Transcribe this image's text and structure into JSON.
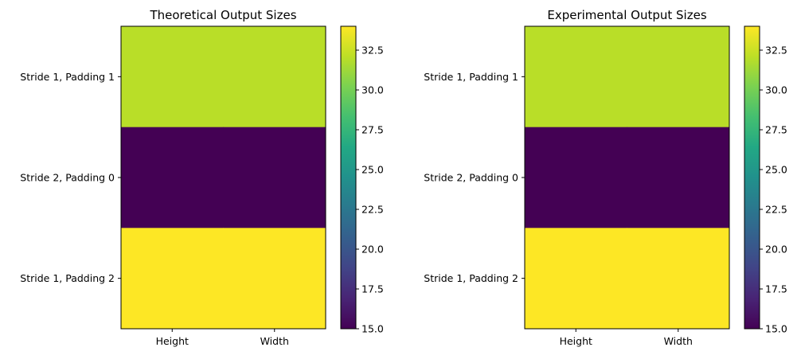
{
  "chart_data": [
    {
      "type": "heatmap",
      "title": "Theoretical Output Sizes",
      "x_categories": [
        "Height",
        "Width"
      ],
      "y_categories": [
        "Stride 1, Padding 1",
        "Stride 2, Padding 0",
        "Stride 1, Padding 2"
      ],
      "values": [
        [
          32,
          32
        ],
        [
          15,
          15
        ],
        [
          34,
          34
        ]
      ],
      "colormap": "viridis",
      "colorbar": {
        "range": [
          15,
          34
        ],
        "ticks": [
          "15.0",
          "17.5",
          "20.0",
          "22.5",
          "25.0",
          "27.5",
          "30.0",
          "32.5"
        ]
      }
    },
    {
      "type": "heatmap",
      "title": "Experimental Output Sizes",
      "x_categories": [
        "Height",
        "Width"
      ],
      "y_categories": [
        "Stride 1, Padding 1",
        "Stride 2, Padding 0",
        "Stride 1, Padding 2"
      ],
      "values": [
        [
          32,
          32
        ],
        [
          15,
          15
        ],
        [
          34,
          34
        ]
      ],
      "colormap": "viridis",
      "colorbar": {
        "range": [
          15,
          34
        ],
        "ticks": [
          "15.0",
          "17.5",
          "20.0",
          "22.5",
          "25.0",
          "27.5",
          "30.0",
          "32.5"
        ]
      }
    }
  ]
}
